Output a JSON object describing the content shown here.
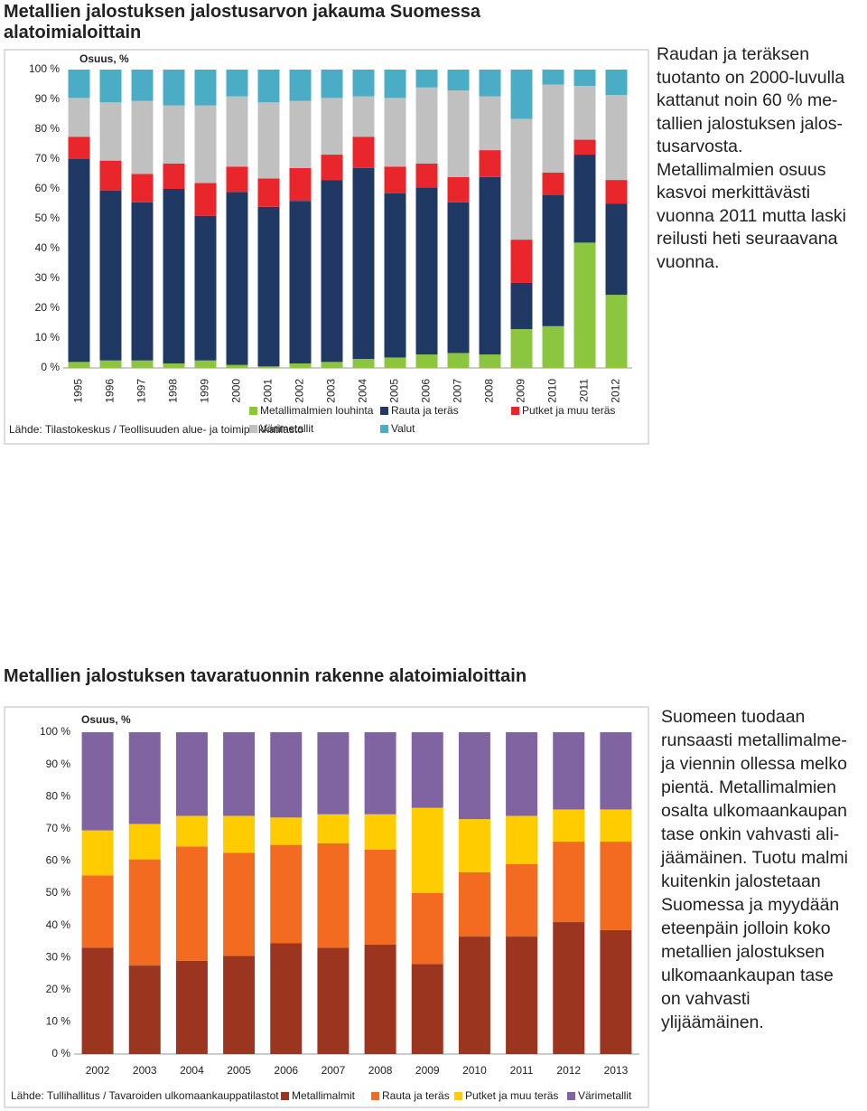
{
  "chart_data": [
    {
      "type": "stacked_bar",
      "title": "Metallien jalostuksen jalostusarvon jakauma Suomessa alatoimialoittain",
      "y_label": "Osuus, %",
      "source": "Lähde: Tilastokeskus / Teollisuuden alue- ja toimipaikkatilasto",
      "categories": [
        "1995",
        "1996",
        "1997",
        "1998",
        "1999",
        "2000",
        "2001",
        "2002",
        "2003",
        "2004",
        "2005",
        "2006",
        "2007",
        "2008",
        "2009",
        "2010",
        "2011",
        "2012"
      ],
      "series": [
        {
          "name": "Metallimalmien louhinta",
          "color": "#8cc63f",
          "values": [
            2,
            2.5,
            2.5,
            1.5,
            2.5,
            1,
            0.5,
            1.5,
            2,
            3,
            3.5,
            4.5,
            5,
            4.5,
            13,
            14,
            42,
            24.5
          ]
        },
        {
          "name": "Rauta ja teräs",
          "color": "#1f3864",
          "values": [
            68,
            57,
            53,
            58.5,
            48.5,
            58,
            53.5,
            54.5,
            61,
            64,
            55,
            56,
            50.5,
            59.5,
            15.5,
            44,
            29.5,
            30.5
          ]
        },
        {
          "name": "Putket ja muu teräs",
          "color": "#e8262b",
          "values": [
            7.5,
            10,
            9.5,
            8.5,
            11,
            8.5,
            9.5,
            11,
            8.5,
            10.5,
            9,
            8,
            8.5,
            9,
            14.5,
            7.5,
            5,
            8
          ]
        },
        {
          "name": "Värimetallit",
          "color": "#c0c0c0",
          "values": [
            13,
            19.5,
            24.5,
            19.5,
            26,
            23.5,
            25.5,
            22.5,
            19,
            13.5,
            23,
            25.5,
            29,
            18,
            40.5,
            29.5,
            18,
            28.5
          ]
        },
        {
          "name": "Valut",
          "color": "#4bacc6",
          "values": [
            9.5,
            11,
            10.5,
            12,
            12,
            9,
            11,
            10.5,
            9.5,
            9,
            9.5,
            6,
            7,
            9,
            16.5,
            5,
            5.5,
            8.5
          ]
        }
      ],
      "ylim": [
        0,
        100
      ],
      "yticks": [
        {
          "value": 0,
          "label": "0 %"
        },
        {
          "value": 10,
          "label": "10 %"
        },
        {
          "value": 20,
          "label": "20 %"
        },
        {
          "value": 30,
          "label": "30 %"
        },
        {
          "value": 40,
          "label": "40 %"
        },
        {
          "value": 50,
          "label": "50 %"
        },
        {
          "value": 60,
          "label": "60 %"
        },
        {
          "value": 70,
          "label": "70 %"
        },
        {
          "value": 80,
          "label": "80 %"
        },
        {
          "value": 90,
          "label": "90 %"
        },
        {
          "value": 100,
          "label": "100 %"
        }
      ],
      "grid": false,
      "side_text": [
        "Raudan ja teräksen",
        "tuotanto on 2000-luvulla",
        "kattanut noin 60 % me-",
        "tallien jalostuksen jalos-",
        "tusarvosta.",
        "Metallimalmien osuus",
        "kasvoi merkittävästi",
        "vuonna 2011 mutta laski",
        "reilusti heti seuraavana",
        "vuonna."
      ]
    },
    {
      "type": "stacked_bar",
      "title": "Metallien jalostuksen tavaratuonnin rakenne alatoimialoittain",
      "y_label": "Osuus, %",
      "source": "Lähde: Tullihallitus / Tavaroiden ulkomaankauppatilastot",
      "categories": [
        "2002",
        "2003",
        "2004",
        "2005",
        "2006",
        "2007",
        "2008",
        "2009",
        "2010",
        "2011",
        "2012",
        "2013"
      ],
      "series": [
        {
          "name": "Metallimalmit",
          "color": "#9c3520",
          "values": [
            33,
            27.5,
            29,
            30.5,
            34.5,
            33,
            34,
            28,
            36.5,
            36.5,
            41,
            38.5
          ]
        },
        {
          "name": "Rauta ja teräs",
          "color": "#f26b21",
          "values": [
            22.5,
            33,
            35.5,
            32,
            30.5,
            32.5,
            29.5,
            22,
            20,
            22.5,
            25,
            27.5
          ]
        },
        {
          "name": "Putket ja muu teräs",
          "color": "#ffcc00",
          "values": [
            14,
            11,
            9.5,
            11.5,
            8.5,
            9,
            11,
            26.5,
            16.5,
            15,
            10,
            10
          ]
        },
        {
          "name": "Värimetallit",
          "color": "#8064a2",
          "values": [
            30.5,
            28.5,
            26,
            26,
            26.5,
            25.5,
            25.5,
            23.5,
            27,
            26,
            24,
            24
          ]
        }
      ],
      "ylim": [
        0,
        100
      ],
      "yticks": [
        {
          "value": 0,
          "label": "0 %"
        },
        {
          "value": 10,
          "label": "10 %"
        },
        {
          "value": 20,
          "label": "20 %"
        },
        {
          "value": 30,
          "label": "30 %"
        },
        {
          "value": 40,
          "label": "40 %"
        },
        {
          "value": 50,
          "label": "50 %"
        },
        {
          "value": 60,
          "label": "60 %"
        },
        {
          "value": 70,
          "label": "70 %"
        },
        {
          "value": 80,
          "label": "80 %"
        },
        {
          "value": 90,
          "label": "90 %"
        },
        {
          "value": 100,
          "label": "100 %"
        }
      ],
      "grid": false,
      "side_text": [
        "Suomeen tuodaan",
        "runsaasti metallimalme-",
        "ja viennin ollessa melko",
        "pientä. Metallimalmien",
        "osalta ulkomaankaupan",
        "tase onkin vahvasti ali-",
        "jäämäinen. Tuotu malmi",
        "kuitenkin jalostetaan",
        "Suomessa ja myydään",
        "eteenpäin jolloin koko",
        "metallien jalostuksen",
        "ulkomaankaupan tase",
        "on vahvasti",
        "ylijäämäinen."
      ]
    }
  ]
}
